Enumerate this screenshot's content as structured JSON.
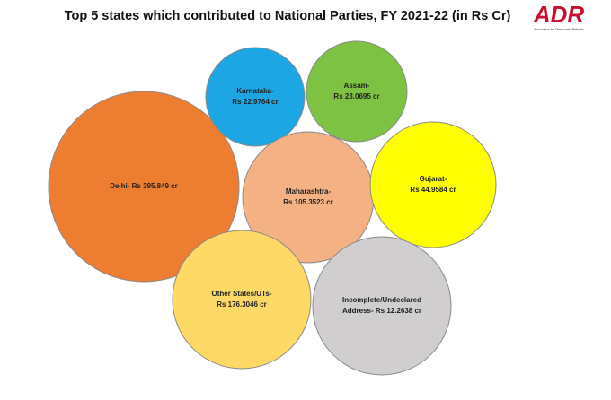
{
  "title": "Top 5 states which contributed to National Parties, FY 2021-22 (in Rs Cr)",
  "logo": {
    "text": "ADR",
    "tagline": "Association for Democratic Reforms"
  },
  "nodes": [
    {
      "lines": [
        "Delhi- Rs 395.849 cr"
      ]
    },
    {
      "lines": [
        "Karnataka-",
        "Rs 22.9764 cr"
      ]
    },
    {
      "lines": [
        "Assam-",
        "Rs 23.0695 cr"
      ]
    },
    {
      "lines": [
        "Maharashtra-",
        "Rs 105.3523 cr"
      ]
    },
    {
      "lines": [
        "Gujarat-",
        "Rs 44.9584 cr"
      ]
    },
    {
      "lines": [
        "Other States/UTs-",
        "Rs 176.3046 cr"
      ]
    },
    {
      "lines": [
        "Incomplete/Undeclared",
        "Address- Rs 12.2638 cr"
      ]
    }
  ]
}
